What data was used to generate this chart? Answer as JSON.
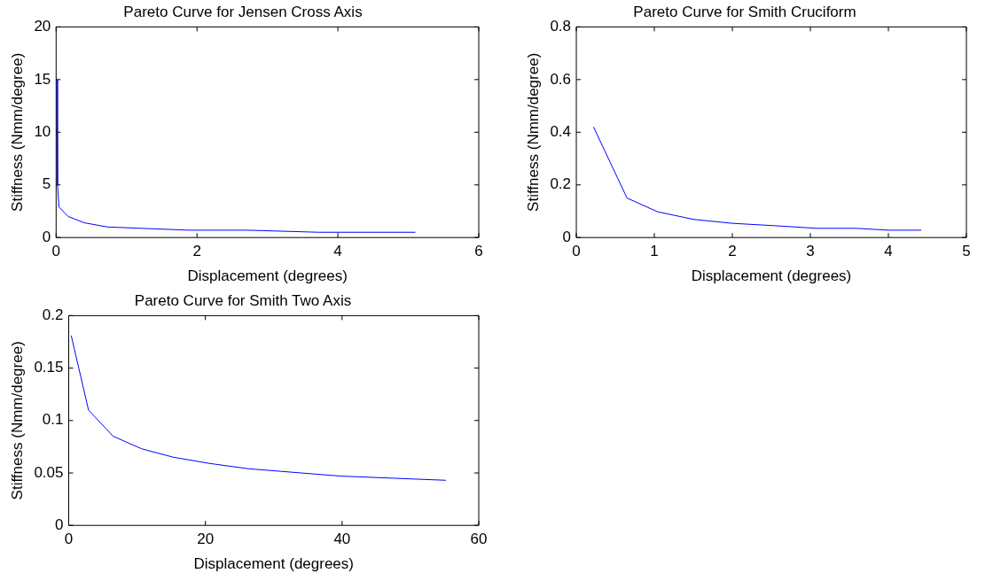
{
  "chart_data": [
    {
      "type": "line",
      "title": "Pareto Curve for Jensen Cross Axis",
      "xlabel": "Displacement (degrees)",
      "ylabel": "Stiffness (Nmm/degree)",
      "color": "#0000ff",
      "grid": false,
      "xlim": [
        0,
        6
      ],
      "xticks": [
        0,
        2,
        4,
        6
      ],
      "ylim": [
        0,
        20
      ],
      "yticks": [
        0,
        5,
        10,
        15,
        20
      ],
      "x": [
        0.01,
        0.02,
        0.04,
        0.17,
        0.4,
        0.73,
        1.88,
        2.7,
        3.74,
        5.1
      ],
      "values": [
        15,
        5,
        2.9,
        2.0,
        1.4,
        1.0,
        0.7,
        0.7,
        0.5,
        0.5
      ]
    },
    {
      "type": "line",
      "title": "Pareto Curve for Smith Cruciform",
      "xlabel": "Displacement (degrees)",
      "ylabel": "Stiffness (Nmm/degree)",
      "color": "#0000ff",
      "grid": false,
      "xlim": [
        0,
        5
      ],
      "xticks": [
        0,
        1,
        2,
        3,
        4,
        5
      ],
      "ylim": [
        0,
        0.8
      ],
      "yticks": [
        0,
        0.2,
        0.4,
        0.6,
        0.8
      ],
      "x": [
        0.22,
        0.65,
        1.04,
        1.5,
        2.0,
        2.54,
        3.08,
        3.58,
        4.0,
        4.42
      ],
      "values": [
        0.42,
        0.15,
        0.098,
        0.069,
        0.054,
        0.045,
        0.035,
        0.035,
        0.028,
        0.028
      ]
    },
    {
      "type": "line",
      "title": "Pareto Curve for Smith Two Axis",
      "xlabel": "Displacement (degrees)",
      "ylabel": "Stiffness (Nmm/degree)",
      "color": "#0000ff",
      "grid": false,
      "xlim": [
        0,
        60
      ],
      "xticks": [
        0,
        20,
        40,
        60
      ],
      "ylim": [
        0,
        0.2
      ],
      "yticks": [
        0,
        0.05,
        0.1,
        0.15,
        0.2
      ],
      "x": [
        0.37,
        2.9,
        6.5,
        10.7,
        15.3,
        20.7,
        26.3,
        39.8,
        55.2
      ],
      "values": [
        0.181,
        0.11,
        0.085,
        0.073,
        0.065,
        0.059,
        0.054,
        0.047,
        0.043
      ]
    }
  ]
}
